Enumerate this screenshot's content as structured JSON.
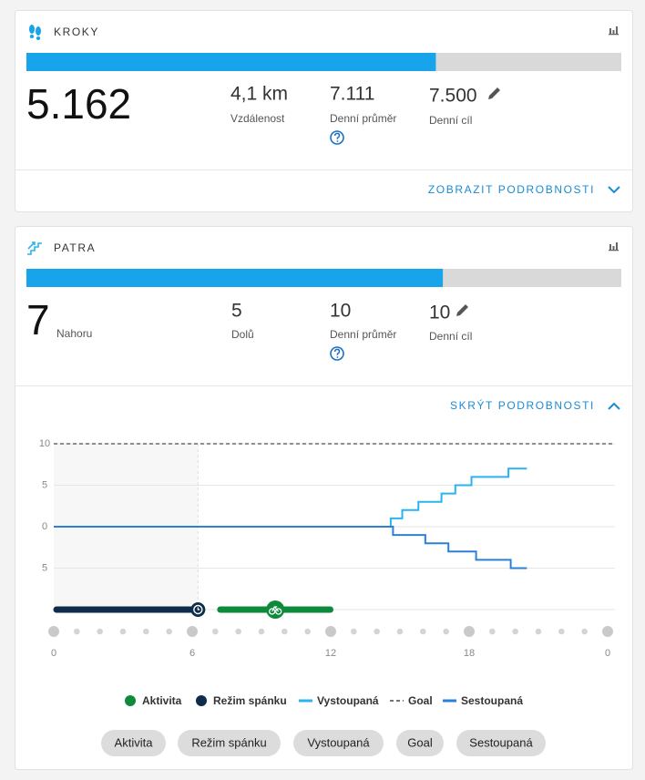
{
  "steps": {
    "title": "KROKY",
    "count": {
      "value": 5162,
      "label": "5.162"
    },
    "stats": [
      {
        "value": "4,1 km",
        "label": "Vzdálenost"
      },
      {
        "value": "7.111",
        "label": "Denní průměr"
      }
    ],
    "goal": {
      "value": 7500,
      "label": "7.500"
    },
    "goal_label": "Denní cíl",
    "toggle": "ZOBRAZIT PODROBNOSTI"
  },
  "floors": {
    "title": "PATRA",
    "count": 7,
    "count_label": "Nahoru",
    "stats": [
      {
        "value": "5",
        "label": "Dolů"
      },
      {
        "value": "10",
        "label": "Denní průměr"
      }
    ],
    "goal": 10,
    "goal_label": "Denní cíl",
    "toggle": "SKRÝT PODROBNOSTI"
  },
  "chart_data": {
    "type": "line",
    "step": true,
    "xlim": [
      0,
      24
    ],
    "xticks": [
      0,
      6,
      12,
      18,
      {
        "value": 24,
        "label": "0"
      }
    ],
    "ylim": [
      -10,
      10
    ],
    "yticks": [
      10,
      5,
      0,
      {
        "value": -5,
        "label": "5"
      }
    ],
    "grid": true,
    "series": [
      {
        "name": "Aktivita",
        "color": "#0e8a3c",
        "start": 7.1,
        "end": 12.1
      },
      {
        "name": "Režim spánku",
        "color": "#0f2d4b",
        "start": 0,
        "end": 6.25
      },
      {
        "name": "Vystoupaná",
        "color": "#2ab3f0",
        "x": [
          0,
          14.6,
          15.1,
          15.8,
          16.8,
          17.4,
          18.1,
          19.7,
          20.5
        ],
        "values": [
          0,
          1,
          2,
          3,
          4,
          5,
          6,
          7,
          7
        ]
      },
      {
        "name": "Goal",
        "color": "#222222",
        "value": 10,
        "dash": true
      },
      {
        "name": "Sestoupaná",
        "color": "#2b80d8",
        "x": [
          0,
          14.7,
          16.1,
          17.1,
          18.3,
          19.8,
          20.5
        ],
        "values": [
          0,
          -1,
          -2,
          -3,
          -4,
          -5,
          -5
        ]
      }
    ]
  }
}
